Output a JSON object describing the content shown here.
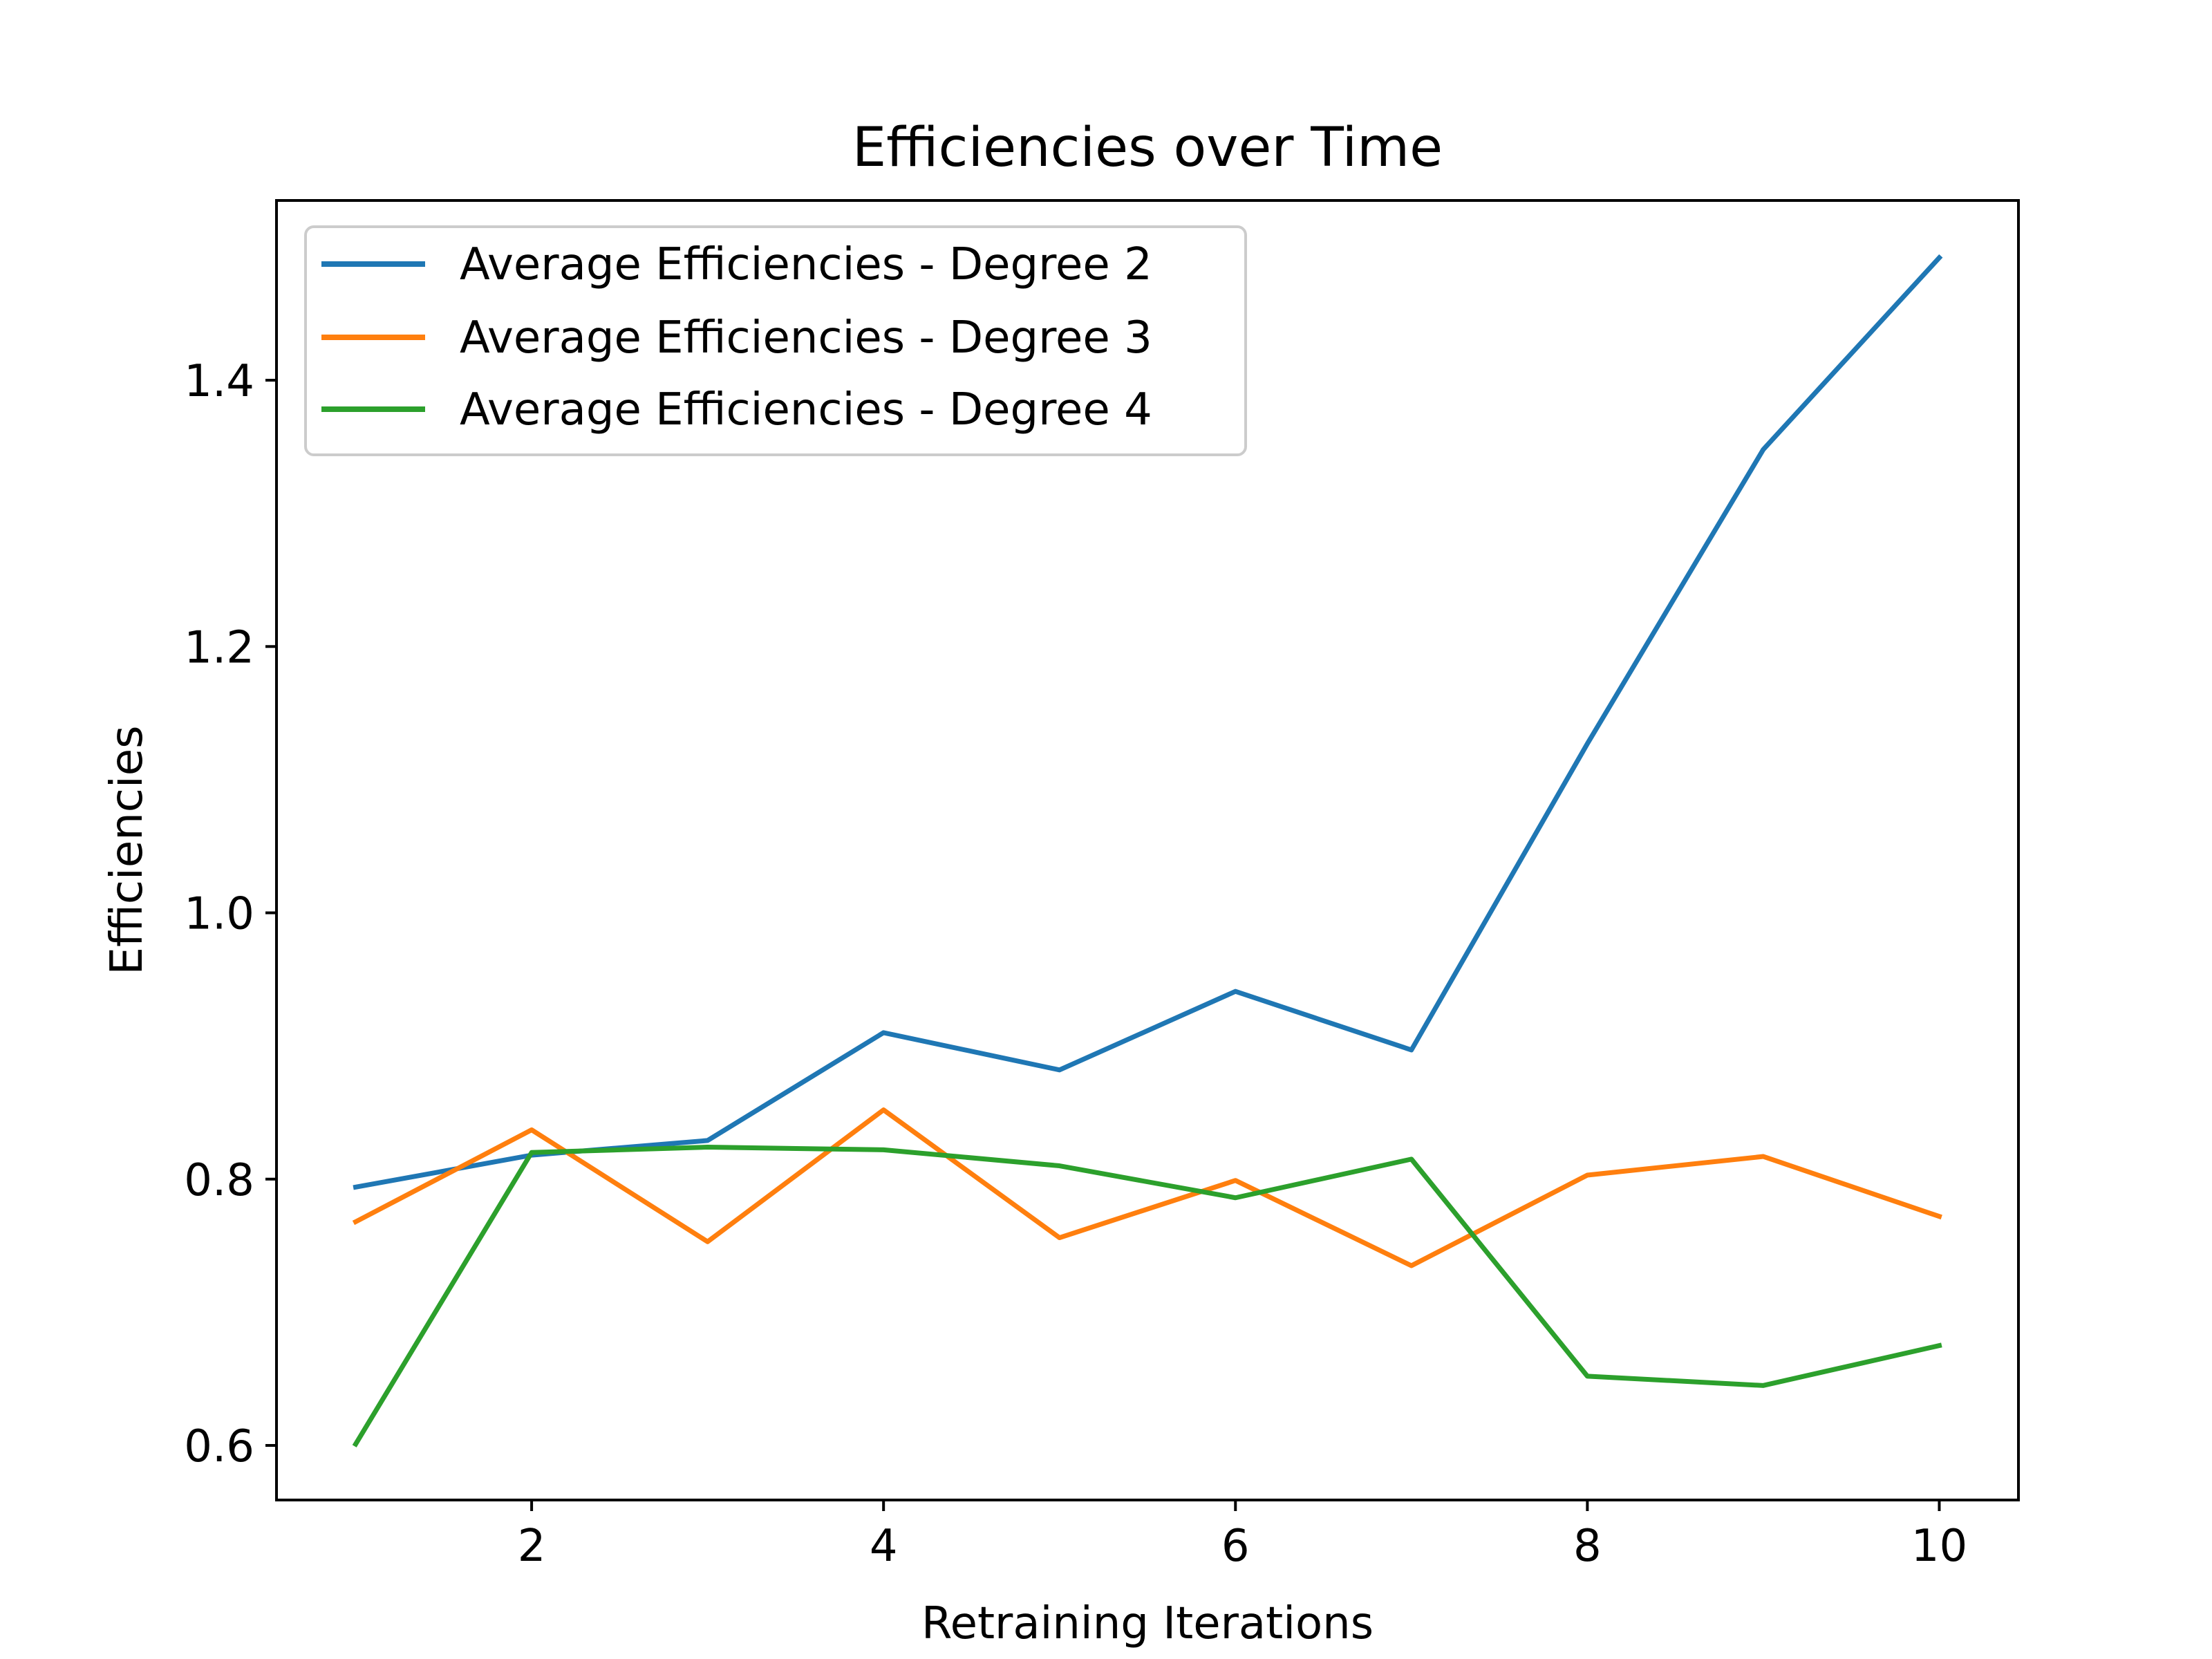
{
  "chart_data": {
    "type": "line",
    "title": "Efficiencies over Time",
    "xlabel": "Retraining Iterations",
    "ylabel": "Efficiencies",
    "x": [
      1,
      2,
      3,
      4,
      5,
      6,
      7,
      8,
      9,
      10
    ],
    "xlim": [
      0.55,
      10.45
    ],
    "ylim": [
      0.559,
      1.535
    ],
    "xticks": [
      2,
      4,
      6,
      8,
      10
    ],
    "yticks": [
      0.6,
      0.8,
      1.0,
      1.2,
      1.4
    ],
    "xtick_labels": [
      "2",
      "4",
      "6",
      "8",
      "10"
    ],
    "ytick_labels": [
      "0.6",
      "0.8",
      "1.0",
      "1.2",
      "1.4"
    ],
    "grid": false,
    "legend_position": "top-left",
    "series": [
      {
        "name": "Average Efficiencies - Degree 2",
        "color": "#1f77b4",
        "values": [
          0.794,
          0.818,
          0.829,
          0.91,
          0.882,
          0.941,
          0.897,
          1.127,
          1.348,
          1.492
        ]
      },
      {
        "name": "Average Efficiencies - Degree 3",
        "color": "#ff7f0e",
        "values": [
          0.768,
          0.837,
          0.753,
          0.852,
          0.756,
          0.799,
          0.735,
          0.803,
          0.817,
          0.772
        ]
      },
      {
        "name": "Average Efficiencies - Degree 4",
        "color": "#2ca02c",
        "values": [
          0.601,
          0.82,
          0.824,
          0.822,
          0.81,
          0.786,
          0.815,
          0.652,
          0.645,
          0.675
        ]
      }
    ]
  }
}
